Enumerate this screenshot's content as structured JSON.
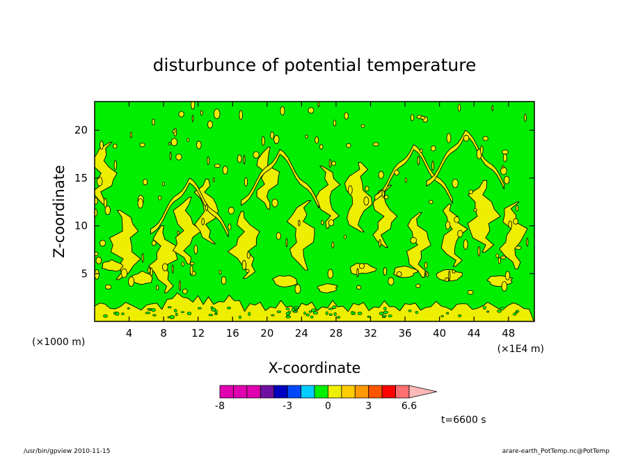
{
  "chart_data": {
    "type": "heatmap",
    "title": "disturbunce of potential temperature",
    "xlabel": "X-coordinate",
    "ylabel": "Z-coordinate",
    "x_unit_left": "(×1000 m)",
    "x_unit_right": "(×1E4 m)",
    "xlim": [
      0,
      51
    ],
    "ylim": [
      0,
      23
    ],
    "x_ticks": [
      4,
      8,
      12,
      16,
      20,
      24,
      28,
      32,
      36,
      40,
      44,
      48
    ],
    "y_ticks": [
      5,
      10,
      15,
      20
    ],
    "colorbar": {
      "levels": [
        -8,
        -7,
        -6,
        -5,
        -4,
        -3,
        -2,
        -1,
        0,
        1,
        2,
        3,
        4,
        5,
        6,
        6.6
      ],
      "labels": [
        "-8",
        "-3",
        "0",
        "3",
        "6.6"
      ],
      "label_values": [
        -8,
        -3,
        0,
        3,
        6.6
      ],
      "colors": [
        "#e000b0",
        "#e000b0",
        "#e000b0",
        "#7010a0",
        "#0000c0",
        "#0048ff",
        "#00ccff",
        "#00ee00",
        "#eeee00",
        "#ffcc00",
        "#ff9900",
        "#ff5500",
        "#ff0000",
        "#ff7070",
        "#ffb8b8"
      ]
    },
    "field_colors": {
      "background": "#00ee00",
      "positive": "#eeee00"
    },
    "time_label": "t=6600 s",
    "footer_left": "/usr/bin/gpview  2010-11-15",
    "footer_right": "arare-earth_PotTemp.nc@PotTemp",
    "features": {
      "plumes": [
        {
          "x": 1.0,
          "z": 15.5,
          "w": 1.0
        },
        {
          "x": 3.5,
          "z": 8.0,
          "w": 1.3
        },
        {
          "x": 8.0,
          "z": 6.5,
          "w": 1.2
        },
        {
          "x": 10.5,
          "z": 9.5,
          "w": 1.2
        },
        {
          "x": 13.0,
          "z": 11.5,
          "w": 1.1
        },
        {
          "x": 17.5,
          "z": 8.0,
          "w": 1.2
        },
        {
          "x": 20.0,
          "z": 15.0,
          "w": 1.0
        },
        {
          "x": 24.0,
          "z": 9.0,
          "w": 1.3
        },
        {
          "x": 27.0,
          "z": 13.0,
          "w": 1.0
        },
        {
          "x": 30.5,
          "z": 13.0,
          "w": 1.3
        },
        {
          "x": 33.5,
          "z": 11.0,
          "w": 1.0
        },
        {
          "x": 37.5,
          "z": 8.0,
          "w": 1.1
        },
        {
          "x": 41.5,
          "z": 9.0,
          "w": 1.0
        },
        {
          "x": 45.0,
          "z": 11.0,
          "w": 1.4
        },
        {
          "x": 48.5,
          "z": 9.0,
          "w": 1.2
        }
      ],
      "arcs": [
        {
          "x": 21.5,
          "z": 18.0
        },
        {
          "x": 37.0,
          "z": 18.5
        },
        {
          "x": 43.0,
          "z": 20.0
        },
        {
          "x": 11.0,
          "z": 15.0
        }
      ],
      "blobs": [
        {
          "x": 2.0,
          "z": 5.8,
          "rx": 1.2,
          "rz": 0.6
        },
        {
          "x": 5.5,
          "z": 4.5,
          "rx": 1.6,
          "rz": 0.7
        },
        {
          "x": 22.0,
          "z": 4.2,
          "rx": 1.5,
          "rz": 0.6
        },
        {
          "x": 31.0,
          "z": 5.5,
          "rx": 1.6,
          "rz": 0.6
        },
        {
          "x": 36.0,
          "z": 5.2,
          "rx": 1.4,
          "rz": 0.6
        },
        {
          "x": 41.0,
          "z": 4.8,
          "rx": 1.6,
          "rz": 0.7
        },
        {
          "x": 47.0,
          "z": 4.3,
          "rx": 1.6,
          "rz": 0.6
        },
        {
          "x": 27.0,
          "z": 3.5,
          "rx": 1.2,
          "rz": 0.5
        }
      ]
    }
  }
}
